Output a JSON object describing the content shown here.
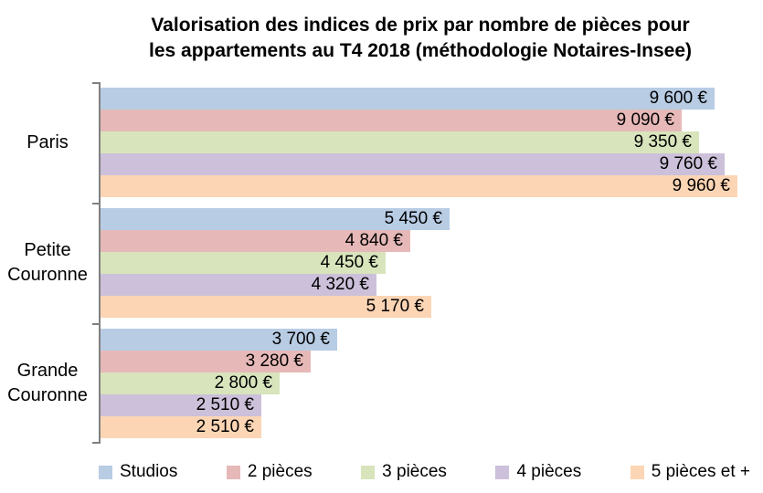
{
  "chart_data": {
    "type": "bar",
    "orientation": "horizontal",
    "title": "Valorisation des indices de prix par nombre de pièces pour les appartements au T4 2018 (méthodologie Notaires-Insee)",
    "title_lines": [
      "Valorisation des indices de prix par nombre de pièces pour",
      "les appartements au T4 2018 (méthodologie Notaires-Insee)"
    ],
    "categories": [
      "Paris",
      "Petite Couronne",
      "Grande Couronne"
    ],
    "series": [
      {
        "name": "Studios",
        "color": "#B8CCE4",
        "values": [
          9600,
          5450,
          3700
        ],
        "labels": [
          "9 600 €",
          "5 450 €",
          "3 700 €"
        ]
      },
      {
        "name": "2 pièces",
        "color": "#E6B9B8",
        "values": [
          9090,
          4840,
          3280
        ],
        "labels": [
          "9 090 €",
          "4 840 €",
          "3 280 €"
        ]
      },
      {
        "name": "3 pièces",
        "color": "#D8E4BC",
        "values": [
          9350,
          4450,
          2800
        ],
        "labels": [
          "9 350 €",
          "4 450 €",
          "2 800 €"
        ]
      },
      {
        "name": "4 pièces",
        "color": "#CCC0DA",
        "values": [
          9760,
          4320,
          2510
        ],
        "labels": [
          "9 760 €",
          "4 320 €",
          "2 510 €"
        ]
      },
      {
        "name": "5 pièces et +",
        "color": "#FCD5B4",
        "values": [
          9960,
          5170,
          2510
        ],
        "labels": [
          "9 960 €",
          "5 170 €",
          "2 510 €"
        ]
      }
    ],
    "xlim": [
      0,
      10000
    ],
    "grid": false,
    "legend_position": "bottom",
    "axis_color": "#808080",
    "data_label_color": "#000000"
  }
}
